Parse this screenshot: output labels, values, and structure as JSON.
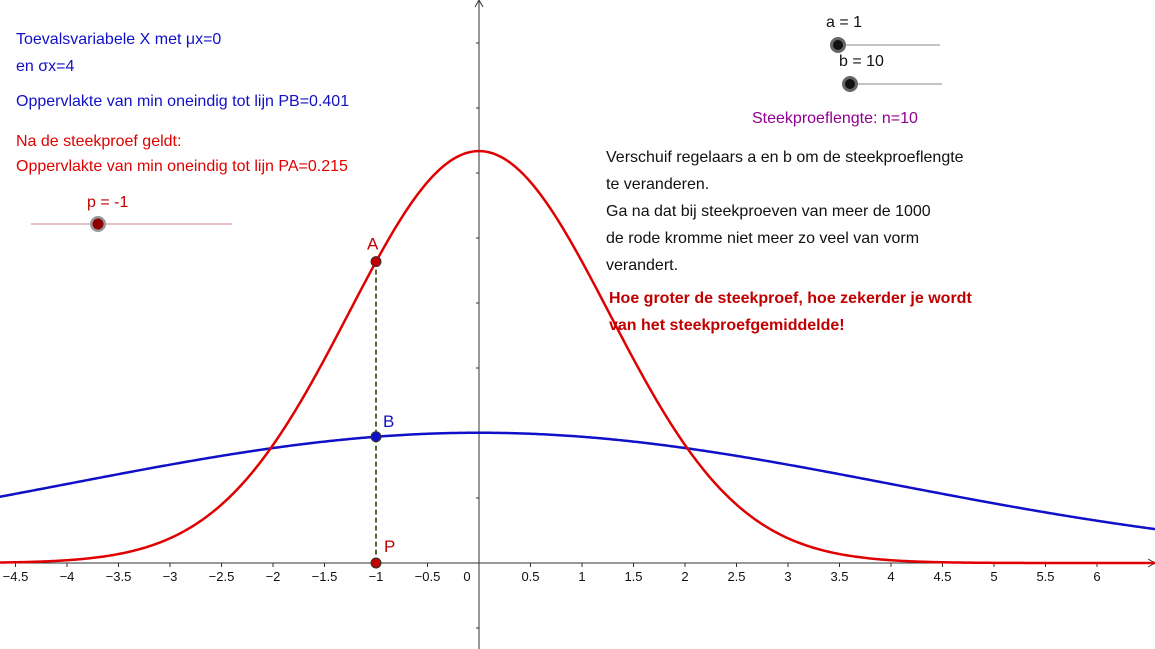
{
  "info": {
    "line1": "Toevalsvariabele X met μx=0",
    "line2": "en σx=4",
    "area_pb": "Oppervlakte van min oneindig tot lijn PB=0.401",
    "after_sample": "Na de steekproef geldt:",
    "area_pa": "Oppervlakte van min oneindig tot lijn PA=0.215"
  },
  "sliders": {
    "a": {
      "label": "a = 1",
      "value": 1,
      "min": 1,
      "max": 10
    },
    "b": {
      "label": "b = 10",
      "value": 10,
      "min": 10,
      "max": 1000
    },
    "p": {
      "label": "p = -1",
      "value": -1,
      "min": -4,
      "max": 4
    }
  },
  "sample_length": "Steekproeflengte:  n=10",
  "instructions": [
    "Verschuif regelaars a en b om de steekproeflengte",
    "te veranderen.",
    "Ga na dat bij steekproeven van meer de 1000",
    "de rode kromme niet meer zo veel van vorm",
    "verandert."
  ],
  "conclusion": [
    "Hoe groter de steekproef, hoe zekerder je wordt",
    "van het steekproefgemiddelde!"
  ],
  "points": {
    "A": "A",
    "B": "B",
    "P": "P"
  },
  "colors": {
    "blue_curve": "#1010c8",
    "red_curve": "#e00000",
    "point_red": "#c00000",
    "point_blue": "#1010c8"
  },
  "chart_data": {
    "type": "line",
    "x_ticks": [
      "-4.5",
      "-4",
      "-3.5",
      "-3",
      "-2.5",
      "-2",
      "-1.5",
      "-1",
      "-0.5",
      "0",
      "0.5",
      "1",
      "1.5",
      "2",
      "2.5",
      "3",
      "3.5",
      "4",
      "4.5",
      "5",
      "5.5",
      "6"
    ],
    "xlim": [
      -4.6,
      6.5
    ],
    "series": [
      {
        "distribution": "normal",
        "mu": 0,
        "sigma": 4
      },
      {
        "distribution": "normal",
        "mu": 0,
        "sigma": 1.2649
      }
    ],
    "marker_x": -1
  }
}
